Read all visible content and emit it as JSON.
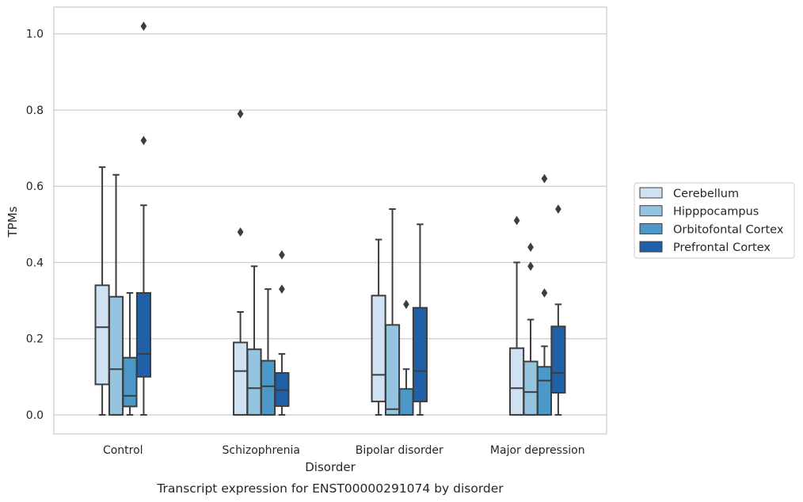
{
  "chart_data": {
    "type": "box",
    "xlabel": "Disorder",
    "ylabel": "TPMs",
    "caption": "Transcript expression for ENST00000291074 by disorder",
    "ylim": [
      -0.05,
      1.07
    ],
    "yticks": [
      0.0,
      0.2,
      0.4,
      0.6,
      0.8,
      1.0
    ],
    "ytick_labels": [
      "0.0",
      "0.2",
      "0.4",
      "0.6",
      "0.8",
      "1.0"
    ],
    "grid": "horizontal",
    "legend_position": "right",
    "categories": [
      "Control",
      "Schizophrenia",
      "Bipolar disorder",
      "Major depression"
    ],
    "series": [
      {
        "name": "Cerebellum",
        "color": "#d0e1f1",
        "boxes": [
          {
            "whisker_low": 0.0,
            "q1": 0.08,
            "median": 0.23,
            "q3": 0.34,
            "whisker_high": 0.65,
            "outliers": []
          },
          {
            "whisker_low": 0.0,
            "q1": 0.0,
            "median": 0.115,
            "q3": 0.19,
            "whisker_high": 0.27,
            "outliers": [
              0.48,
              0.79
            ]
          },
          {
            "whisker_low": 0.0,
            "q1": 0.035,
            "median": 0.105,
            "q3": 0.313,
            "whisker_high": 0.46,
            "outliers": []
          },
          {
            "whisker_low": 0.0,
            "q1": 0.0,
            "median": 0.07,
            "q3": 0.175,
            "whisker_high": 0.4,
            "outliers": [
              0.51
            ]
          }
        ]
      },
      {
        "name": "Hipppocampus",
        "color": "#94c4df",
        "boxes": [
          {
            "whisker_low": 0.0,
            "q1": 0.0,
            "median": 0.12,
            "q3": 0.31,
            "whisker_high": 0.63,
            "outliers": []
          },
          {
            "whisker_low": 0.0,
            "q1": 0.0,
            "median": 0.07,
            "q3": 0.172,
            "whisker_high": 0.39,
            "outliers": []
          },
          {
            "whisker_low": 0.0,
            "q1": 0.0,
            "median": 0.015,
            "q3": 0.236,
            "whisker_high": 0.54,
            "outliers": []
          },
          {
            "whisker_low": 0.0,
            "q1": 0.0,
            "median": 0.06,
            "q3": 0.14,
            "whisker_high": 0.25,
            "outliers": [
              0.39,
              0.44
            ]
          }
        ]
      },
      {
        "name": "Orbitofontal Cortex",
        "color": "#4b98c9",
        "boxes": [
          {
            "whisker_low": 0.0,
            "q1": 0.022,
            "median": 0.05,
            "q3": 0.15,
            "whisker_high": 0.32,
            "outliers": []
          },
          {
            "whisker_low": 0.0,
            "q1": 0.0,
            "median": 0.075,
            "q3": 0.142,
            "whisker_high": 0.33,
            "outliers": []
          },
          {
            "whisker_low": 0.0,
            "q1": 0.0,
            "median": 0.0,
            "q3": 0.068,
            "whisker_high": 0.12,
            "outliers": [
              0.29
            ]
          },
          {
            "whisker_low": 0.0,
            "q1": 0.0,
            "median": 0.09,
            "q3": 0.126,
            "whisker_high": 0.18,
            "outliers": [
              0.32,
              0.62
            ]
          }
        ]
      },
      {
        "name": "Prefrontal Cortex",
        "color": "#2060a8",
        "boxes": [
          {
            "whisker_low": 0.0,
            "q1": 0.1,
            "median": 0.16,
            "q3": 0.32,
            "whisker_high": 0.55,
            "outliers": [
              0.72,
              1.02
            ]
          },
          {
            "whisker_low": 0.0,
            "q1": 0.023,
            "median": 0.065,
            "q3": 0.11,
            "whisker_high": 0.16,
            "outliers": [
              0.33,
              0.42
            ]
          },
          {
            "whisker_low": 0.0,
            "q1": 0.035,
            "median": 0.115,
            "q3": 0.281,
            "whisker_high": 0.5,
            "outliers": []
          },
          {
            "whisker_low": 0.0,
            "q1": 0.058,
            "median": 0.11,
            "q3": 0.232,
            "whisker_high": 0.29,
            "outliers": [
              0.54
            ]
          }
        ]
      }
    ]
  }
}
